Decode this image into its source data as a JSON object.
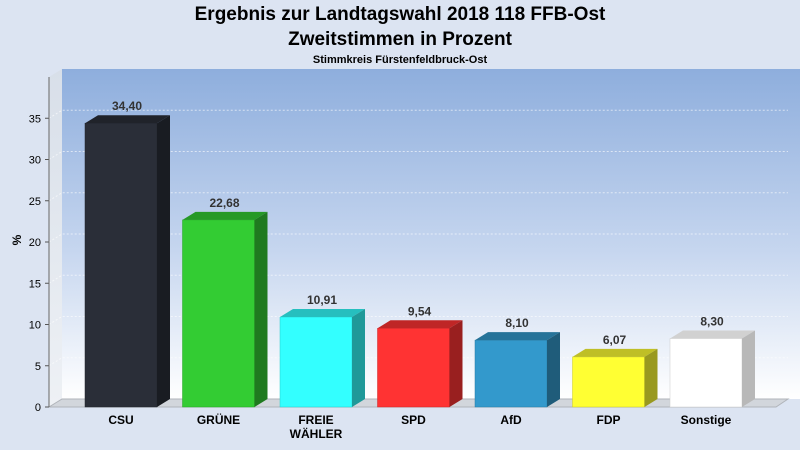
{
  "chart_data": {
    "type": "bar",
    "title": "Ergebnis zur Landtagswahl 2018 118 FFB-Ost",
    "subtitle": "Zweitstimmen in Prozent",
    "subtitle2": "Stimmkreis Fürstenfeldbruck-Ost",
    "xlabel": "",
    "ylabel": "%",
    "ylim": [
      0,
      40
    ],
    "yticks": [
      0,
      5,
      10,
      15,
      20,
      25,
      30,
      35
    ],
    "grid": true,
    "categories": [
      "CSU",
      "GRÜNE",
      "FREIE WÄHLER",
      "SPD",
      "AfD",
      "FDP",
      "Sonstige"
    ],
    "category_lines": [
      [
        "CSU"
      ],
      [
        "GRÜNE"
      ],
      [
        "FREIE",
        "WÄHLER"
      ],
      [
        "SPD"
      ],
      [
        "AfD"
      ],
      [
        "FDP"
      ],
      [
        "Sonstige"
      ]
    ],
    "values": [
      34.4,
      22.68,
      10.91,
      9.54,
      8.1,
      6.07,
      8.3
    ],
    "value_labels": [
      "34,40",
      "22,68",
      "10,91",
      "9,54",
      "8,10",
      "6,07",
      "8,30"
    ],
    "colors": [
      "#2a2e38",
      "#33cc33",
      "#33ffff",
      "#ff3333",
      "#3399cc",
      "#ffff33",
      "#ffffff"
    ]
  }
}
